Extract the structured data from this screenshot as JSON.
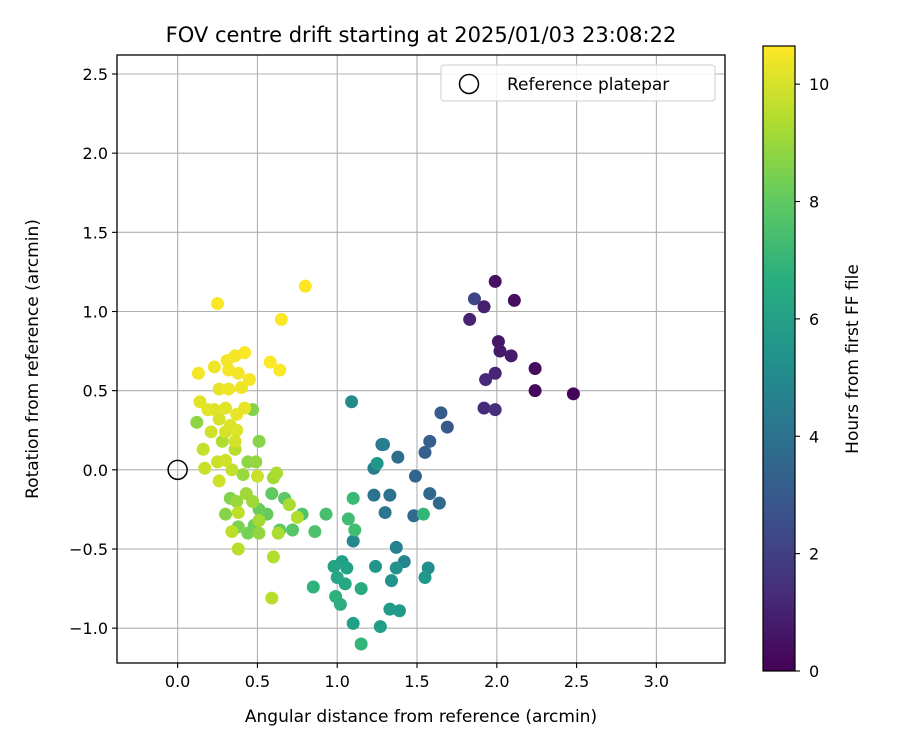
{
  "chart_data": {
    "type": "scatter",
    "title": "FOV centre drift starting at 2025/01/03 23:08:22",
    "xlabel": "Angular distance from reference (arcmin)",
    "ylabel": "Rotation from reference (arcmin)",
    "xlim": [
      -0.38,
      3.43
    ],
    "ylim": [
      -1.22,
      2.62
    ],
    "xticks": [
      0.0,
      0.5,
      1.0,
      1.5,
      2.0,
      2.5,
      3.0
    ],
    "xtick_labels": [
      "0.0",
      "0.5",
      "1.0",
      "1.5",
      "2.0",
      "2.5",
      "3.0"
    ],
    "yticks": [
      -1.0,
      -0.5,
      0.0,
      0.5,
      1.0,
      1.5,
      2.0,
      2.5
    ],
    "ytick_labels": [
      "−1.0",
      "−0.5",
      "0.0",
      "0.5",
      "1.0",
      "1.5",
      "2.0",
      "2.5"
    ],
    "grid": true,
    "legend": {
      "placement": "upper right",
      "entries": [
        "Reference platepar"
      ]
    },
    "reference_point": {
      "x": 0.0,
      "y": 0.0,
      "marker": "open-circle",
      "label": "Reference platepar"
    },
    "colorbar": {
      "label": "Hours from first FF file",
      "colormap": "viridis",
      "range": [
        0,
        10.65
      ],
      "ticks": [
        0,
        2,
        4,
        6,
        8,
        10
      ],
      "tick_labels": [
        "0",
        "2",
        "4",
        "6",
        "8",
        "10"
      ]
    },
    "points": [
      {
        "x": 2.48,
        "y": 0.48,
        "c": 0.1
      },
      {
        "x": 2.24,
        "y": 0.5,
        "c": 0.2
      },
      {
        "x": 2.24,
        "y": 0.64,
        "c": 0.3
      },
      {
        "x": 2.11,
        "y": 1.07,
        "c": 0.4
      },
      {
        "x": 1.99,
        "y": 1.19,
        "c": 0.5
      },
      {
        "x": 2.01,
        "y": 0.81,
        "c": 0.6
      },
      {
        "x": 2.02,
        "y": 0.75,
        "c": 0.7
      },
      {
        "x": 2.09,
        "y": 0.72,
        "c": 0.8
      },
      {
        "x": 1.92,
        "y": 1.03,
        "c": 0.9
      },
      {
        "x": 1.83,
        "y": 0.95,
        "c": 1.0
      },
      {
        "x": 1.99,
        "y": 0.61,
        "c": 1.1
      },
      {
        "x": 1.93,
        "y": 0.57,
        "c": 1.2
      },
      {
        "x": 1.92,
        "y": 0.39,
        "c": 1.3
      },
      {
        "x": 1.99,
        "y": 0.38,
        "c": 1.4
      },
      {
        "x": 1.86,
        "y": 1.08,
        "c": 2.2
      },
      {
        "x": 1.69,
        "y": 0.27,
        "c": 3.0
      },
      {
        "x": 1.65,
        "y": 0.36,
        "c": 3.1
      },
      {
        "x": 1.58,
        "y": 0.18,
        "c": 3.2
      },
      {
        "x": 1.55,
        "y": 0.11,
        "c": 3.3
      },
      {
        "x": 1.49,
        "y": -0.04,
        "c": 3.4
      },
      {
        "x": 1.58,
        "y": -0.15,
        "c": 3.5
      },
      {
        "x": 1.64,
        "y": -0.21,
        "c": 3.6
      },
      {
        "x": 1.48,
        "y": -0.29,
        "c": 3.7
      },
      {
        "x": 1.38,
        "y": 0.08,
        "c": 3.8
      },
      {
        "x": 1.28,
        "y": 0.16,
        "c": 3.9
      },
      {
        "x": 1.33,
        "y": -0.16,
        "c": 4.0
      },
      {
        "x": 1.23,
        "y": -0.16,
        "c": 4.1
      },
      {
        "x": 1.3,
        "y": -0.27,
        "c": 4.2
      },
      {
        "x": 1.23,
        "y": 0.01,
        "c": 4.4
      },
      {
        "x": 1.29,
        "y": 0.16,
        "c": 4.5
      },
      {
        "x": 1.37,
        "y": -0.49,
        "c": 4.7
      },
      {
        "x": 1.42,
        "y": -0.58,
        "c": 4.8
      },
      {
        "x": 1.1,
        "y": -0.45,
        "c": 5.0
      },
      {
        "x": 1.09,
        "y": 0.43,
        "c": 5.1
      },
      {
        "x": 1.57,
        "y": -0.62,
        "c": 5.3
      },
      {
        "x": 1.37,
        "y": -0.62,
        "c": 5.4
      },
      {
        "x": 1.34,
        "y": -0.7,
        "c": 5.5
      },
      {
        "x": 1.25,
        "y": 0.04,
        "c": 5.6
      },
      {
        "x": 1.24,
        "y": -0.61,
        "c": 5.6
      },
      {
        "x": 1.55,
        "y": -0.68,
        "c": 5.7
      },
      {
        "x": 1.33,
        "y": -0.88,
        "c": 5.8
      },
      {
        "x": 1.39,
        "y": -0.89,
        "c": 5.8
      },
      {
        "x": 1.27,
        "y": -0.99,
        "c": 5.9
      },
      {
        "x": 1.1,
        "y": -0.97,
        "c": 6.0
      },
      {
        "x": 1.03,
        "y": -0.58,
        "c": 6.0
      },
      {
        "x": 1.06,
        "y": -0.62,
        "c": 6.1
      },
      {
        "x": 0.98,
        "y": -0.61,
        "c": 6.2
      },
      {
        "x": 1.0,
        "y": -0.68,
        "c": 6.3
      },
      {
        "x": 1.05,
        "y": -0.72,
        "c": 6.4
      },
      {
        "x": 1.15,
        "y": -0.75,
        "c": 6.5
      },
      {
        "x": 1.02,
        "y": -0.85,
        "c": 6.6
      },
      {
        "x": 0.99,
        "y": -0.8,
        "c": 6.7
      },
      {
        "x": 0.85,
        "y": -0.74,
        "c": 6.8
      },
      {
        "x": 1.15,
        "y": -1.1,
        "c": 7.0
      },
      {
        "x": 1.54,
        "y": -0.28,
        "c": 7.0
      },
      {
        "x": 1.1,
        "y": -0.18,
        "c": 7.2
      },
      {
        "x": 1.07,
        "y": -0.31,
        "c": 7.3
      },
      {
        "x": 1.11,
        "y": -0.38,
        "c": 7.4
      },
      {
        "x": 0.93,
        "y": -0.28,
        "c": 7.5
      },
      {
        "x": 0.86,
        "y": -0.39,
        "c": 7.6
      },
      {
        "x": 0.78,
        "y": -0.28,
        "c": 7.7
      },
      {
        "x": 0.72,
        "y": -0.38,
        "c": 7.8
      },
      {
        "x": 0.67,
        "y": -0.18,
        "c": 7.9
      },
      {
        "x": 0.59,
        "y": -0.15,
        "c": 8.0
      },
      {
        "x": 0.64,
        "y": -0.38,
        "c": 8.0
      },
      {
        "x": 0.56,
        "y": -0.28,
        "c": 8.1
      },
      {
        "x": 0.51,
        "y": -0.25,
        "c": 8.2
      },
      {
        "x": 0.48,
        "y": -0.35,
        "c": 8.3
      },
      {
        "x": 0.44,
        "y": -0.4,
        "c": 8.4
      },
      {
        "x": 0.38,
        "y": -0.36,
        "c": 8.5
      },
      {
        "x": 0.33,
        "y": -0.18,
        "c": 8.6
      },
      {
        "x": 0.3,
        "y": -0.28,
        "c": 8.7
      },
      {
        "x": 0.12,
        "y": 0.3,
        "c": 8.8
      },
      {
        "x": 0.47,
        "y": 0.38,
        "c": 8.6
      },
      {
        "x": 0.51,
        "y": 0.18,
        "c": 8.7
      },
      {
        "x": 0.44,
        "y": 0.05,
        "c": 8.8
      },
      {
        "x": 0.49,
        "y": 0.05,
        "c": 8.9
      },
      {
        "x": 0.41,
        "y": -0.03,
        "c": 9.0
      },
      {
        "x": 0.37,
        "y": -0.2,
        "c": 9.0
      },
      {
        "x": 0.43,
        "y": -0.15,
        "c": 9.1
      },
      {
        "x": 0.47,
        "y": -0.2,
        "c": 9.1
      },
      {
        "x": 0.51,
        "y": -0.32,
        "c": 9.2
      },
      {
        "x": 0.51,
        "y": -0.4,
        "c": 8.9
      },
      {
        "x": 0.6,
        "y": -0.05,
        "c": 9.2
      },
      {
        "x": 0.62,
        "y": -0.02,
        "c": 9.3
      },
      {
        "x": 0.7,
        "y": -0.22,
        "c": 9.3
      },
      {
        "x": 0.75,
        "y": -0.3,
        "c": 9.4
      },
      {
        "x": 0.63,
        "y": -0.4,
        "c": 9.3
      },
      {
        "x": 0.6,
        "y": -0.55,
        "c": 9.4
      },
      {
        "x": 0.59,
        "y": -0.81,
        "c": 9.5
      },
      {
        "x": 0.38,
        "y": -0.5,
        "c": 9.5
      },
      {
        "x": 0.34,
        "y": -0.39,
        "c": 9.6
      },
      {
        "x": 0.38,
        "y": -0.27,
        "c": 9.6
      },
      {
        "x": 0.28,
        "y": 0.18,
        "c": 9.4
      },
      {
        "x": 0.36,
        "y": 0.13,
        "c": 9.5
      },
      {
        "x": 0.16,
        "y": 0.13,
        "c": 9.7
      },
      {
        "x": 0.17,
        "y": 0.01,
        "c": 9.8
      },
      {
        "x": 0.25,
        "y": 0.05,
        "c": 9.8
      },
      {
        "x": 0.26,
        "y": -0.07,
        "c": 9.9
      },
      {
        "x": 0.34,
        "y": 0.0,
        "c": 9.7
      },
      {
        "x": 0.3,
        "y": 0.06,
        "c": 9.9
      },
      {
        "x": 0.5,
        "y": -0.04,
        "c": 9.8
      },
      {
        "x": 0.21,
        "y": 0.24,
        "c": 9.9
      },
      {
        "x": 0.26,
        "y": 0.32,
        "c": 10.0
      },
      {
        "x": 0.3,
        "y": 0.24,
        "c": 10.0
      },
      {
        "x": 0.33,
        "y": 0.28,
        "c": 10.1
      },
      {
        "x": 0.37,
        "y": 0.25,
        "c": 10.1
      },
      {
        "x": 0.36,
        "y": 0.18,
        "c": 10.0
      },
      {
        "x": 0.23,
        "y": 0.38,
        "c": 10.1
      },
      {
        "x": 0.3,
        "y": 0.39,
        "c": 10.2
      },
      {
        "x": 0.19,
        "y": 0.38,
        "c": 10.2
      },
      {
        "x": 0.14,
        "y": 0.43,
        "c": 10.2
      },
      {
        "x": 0.42,
        "y": 0.39,
        "c": 10.3
      },
      {
        "x": 0.37,
        "y": 0.35,
        "c": 10.3
      },
      {
        "x": 0.26,
        "y": 0.51,
        "c": 10.3
      },
      {
        "x": 0.32,
        "y": 0.51,
        "c": 10.4
      },
      {
        "x": 0.4,
        "y": 0.52,
        "c": 10.4
      },
      {
        "x": 0.23,
        "y": 0.65,
        "c": 10.4
      },
      {
        "x": 0.32,
        "y": 0.63,
        "c": 10.5
      },
      {
        "x": 0.38,
        "y": 0.61,
        "c": 10.5
      },
      {
        "x": 0.45,
        "y": 0.57,
        "c": 10.5
      },
      {
        "x": 0.31,
        "y": 0.69,
        "c": 10.5
      },
      {
        "x": 0.36,
        "y": 0.72,
        "c": 10.5
      },
      {
        "x": 0.42,
        "y": 0.74,
        "c": 10.6
      },
      {
        "x": 0.13,
        "y": 0.61,
        "c": 10.5
      },
      {
        "x": 0.58,
        "y": 0.68,
        "c": 10.6
      },
      {
        "x": 0.64,
        "y": 0.63,
        "c": 10.6
      },
      {
        "x": 0.25,
        "y": 1.05,
        "c": 10.6
      },
      {
        "x": 0.65,
        "y": 0.95,
        "c": 10.6
      },
      {
        "x": 0.8,
        "y": 1.16,
        "c": 10.7
      }
    ]
  }
}
